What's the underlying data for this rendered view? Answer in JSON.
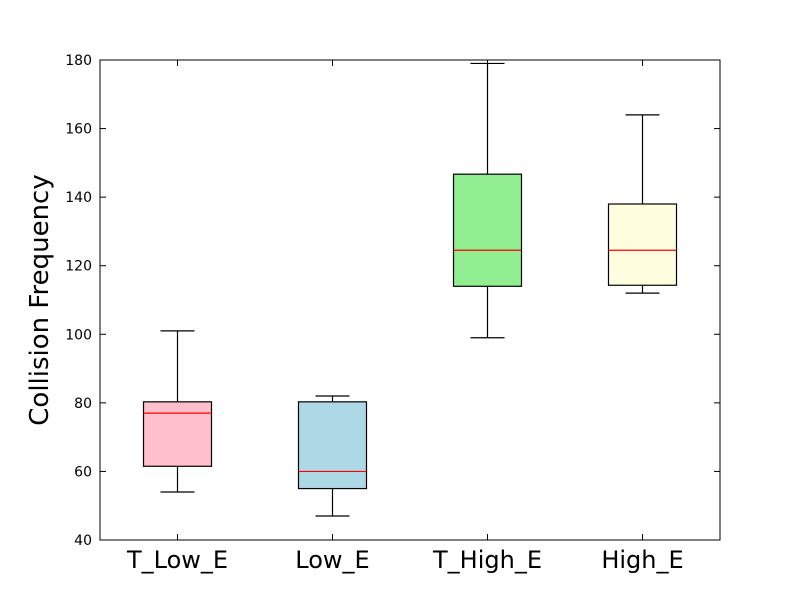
{
  "chart_data": {
    "type": "box",
    "title": "",
    "xlabel": "",
    "ylabel": "Collision Frequency",
    "ylim": [
      40,
      180
    ],
    "yticks": [
      40,
      60,
      80,
      100,
      120,
      140,
      160,
      180
    ],
    "grid": false,
    "categories": [
      "T_Low_E",
      "Low_E",
      "T_High_E",
      "High_E"
    ],
    "boxes": [
      {
        "category": "T_Low_E",
        "whisker_low": 54,
        "q1": 61.5,
        "median": 77,
        "q3": 80.3,
        "whisker_high": 101,
        "color": "#ffc0cb"
      },
      {
        "category": "Low_E",
        "whisker_low": 47,
        "q1": 55,
        "median": 60,
        "q3": 80.3,
        "whisker_high": 82,
        "color": "#add8e6"
      },
      {
        "category": "T_High_E",
        "whisker_low": 99,
        "q1": 114,
        "median": 124.5,
        "q3": 146.7,
        "whisker_high": 179,
        "color": "#90ee90"
      },
      {
        "category": "High_E",
        "whisker_low": 112,
        "q1": 114.3,
        "median": 124.5,
        "q3": 138,
        "whisker_high": 164,
        "color": "#ffffe0"
      }
    ],
    "median_color": "#ff0000",
    "line_color": "#000000"
  }
}
